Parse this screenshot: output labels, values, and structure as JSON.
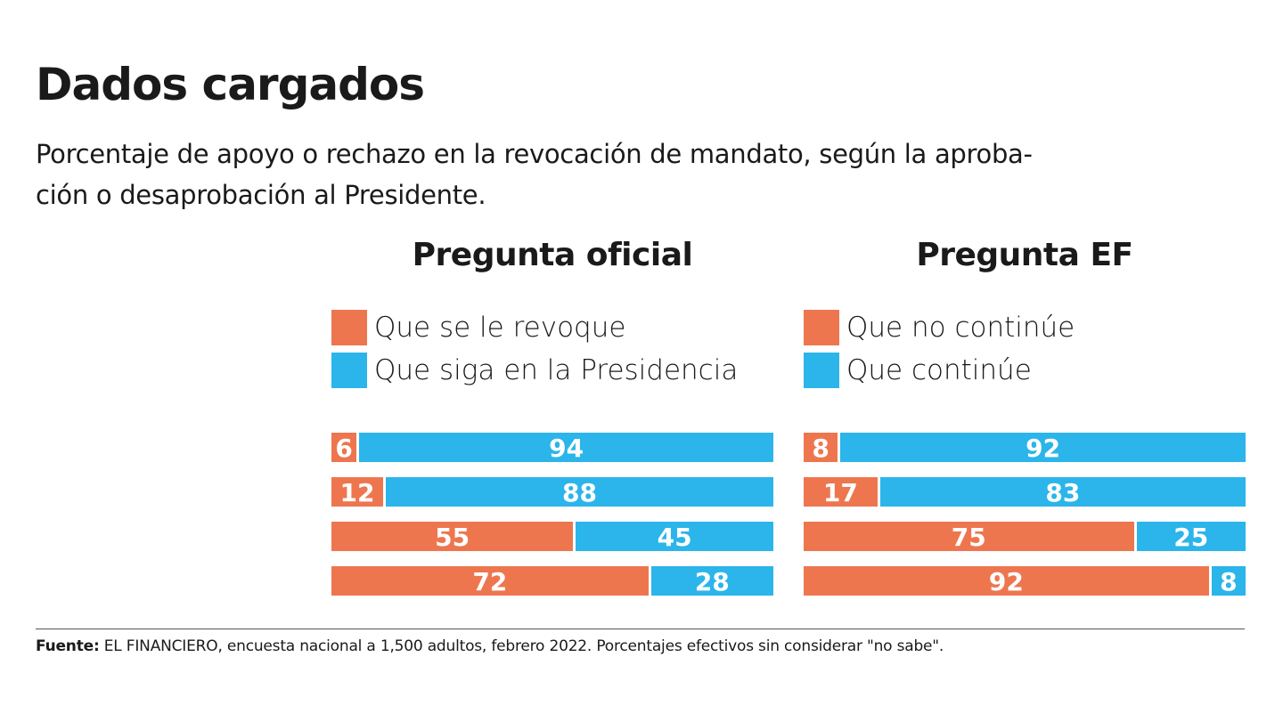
{
  "title": "Dados cargados",
  "subtitle": "Porcentaje de apoyo o rechazo en la revocación de mandato, según la aproba-ción o desaprobación al Presidente.",
  "source_label": "Fuente:",
  "source_text": " EL FINANCIERO, encuesta nacional a 1,500 adultos, febrero 2022. Porcentajes efectivos sin considerar \"no sabe\".",
  "colors": {
    "orange": "#EE764E",
    "blue": "#2BB5EA"
  },
  "chart_data": [
    {
      "type": "bar",
      "orientation": "horizontal",
      "stacked": "100%",
      "title": "Pregunta oficial",
      "series": [
        {
          "name": "Que se le revoque",
          "color": "#EE764E",
          "values": [
            6,
            12,
            55,
            72
          ]
        },
        {
          "name": "Que siga en la Presidencia",
          "color": "#2BB5EA",
          "values": [
            94,
            88,
            45,
            28
          ]
        }
      ],
      "legend": "top-left",
      "xlim": [
        0,
        100
      ]
    },
    {
      "type": "bar",
      "orientation": "horizontal",
      "stacked": "100%",
      "title": "Pregunta EF",
      "series": [
        {
          "name": "Que no continúe",
          "color": "#EE764E",
          "values": [
            8,
            17,
            75,
            92
          ]
        },
        {
          "name": "Que continúe",
          "color": "#2BB5EA",
          "values": [
            92,
            83,
            25,
            8
          ]
        }
      ],
      "legend": "top-left",
      "xlim": [
        0,
        100
      ]
    }
  ]
}
